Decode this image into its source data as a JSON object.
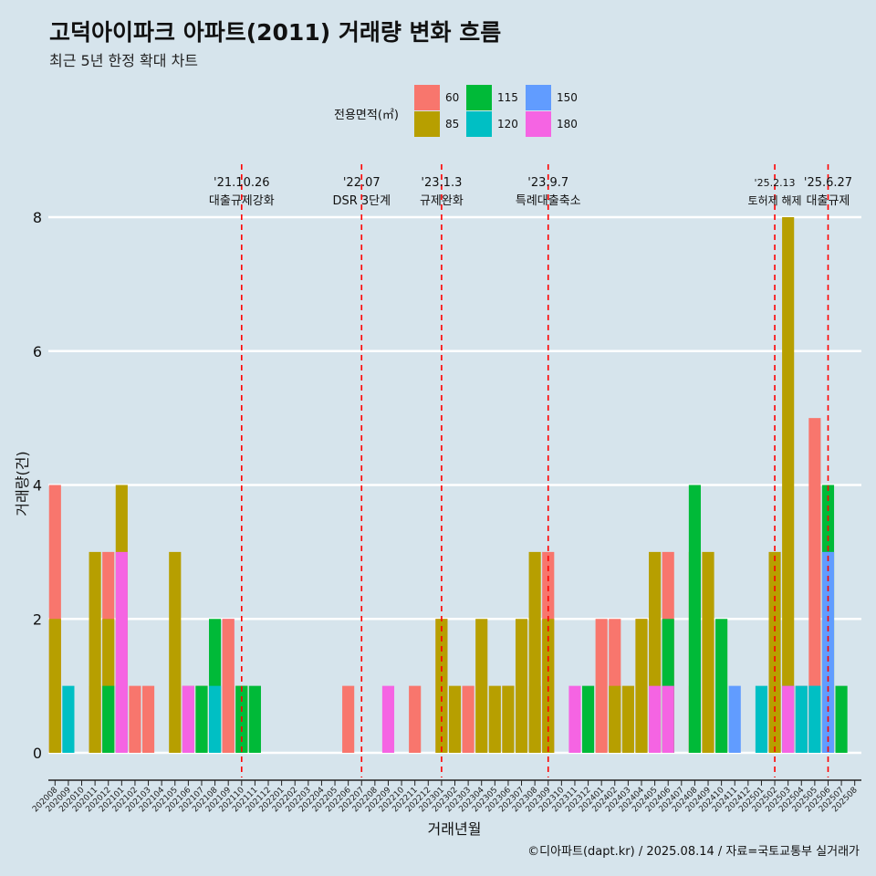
{
  "title": "고덕아이파크 아파트(2011) 거래량 변화 흐름",
  "subtitle": "최근 5년 한정 확대 차트",
  "caption": "©디아파트(dapt.kr) / 2025.08.14 / 자료=국토교통부 실거래가",
  "legend": {
    "title": "전용면적(㎡)",
    "items": [
      {
        "label": "60",
        "color": "#f8766d"
      },
      {
        "label": "85",
        "color": "#b79f00"
      },
      {
        "label": "115",
        "color": "#00ba38"
      },
      {
        "label": "120",
        "color": "#00bfc4"
      },
      {
        "label": "150",
        "color": "#619cff"
      },
      {
        "label": "180",
        "color": "#f564e3"
      }
    ]
  },
  "chart_data": {
    "type": "bar",
    "xlabel": "거래년월",
    "ylabel": "거래량(건)",
    "ylim": [
      0,
      8
    ],
    "yticks": [
      0,
      2,
      4,
      6,
      8
    ],
    "grid": true,
    "categories": [
      "202008",
      "202009",
      "202010",
      "202011",
      "202012",
      "202101",
      "202102",
      "202103",
      "202104",
      "202105",
      "202106",
      "202107",
      "202108",
      "202109",
      "202110",
      "202111",
      "202112",
      "202201",
      "202202",
      "202203",
      "202204",
      "202205",
      "202206",
      "202207",
      "202208",
      "202209",
      "202210",
      "202211",
      "202212",
      "202301",
      "202302",
      "202303",
      "202304",
      "202305",
      "202306",
      "202307",
      "202308",
      "202309",
      "202310",
      "202311",
      "202312",
      "202401",
      "202402",
      "202403",
      "202404",
      "202405",
      "202406",
      "202407",
      "202408",
      "202409",
      "202410",
      "202411",
      "202412",
      "202501",
      "202502",
      "202503",
      "202504",
      "202505",
      "202506",
      "202507",
      "202508"
    ],
    "bars": [
      {
        "month": "202008",
        "area": "60",
        "value": 4
      },
      {
        "month": "202008",
        "area": "85",
        "value": 2
      },
      {
        "month": "202009",
        "area": "120",
        "value": 1
      },
      {
        "month": "202011",
        "area": "60",
        "value": 1
      },
      {
        "month": "202011",
        "area": "85",
        "value": 3
      },
      {
        "month": "202012",
        "area": "60",
        "value": 3
      },
      {
        "month": "202012",
        "area": "85",
        "value": 2
      },
      {
        "month": "202012",
        "area": "115",
        "value": 1
      },
      {
        "month": "202101",
        "area": "120",
        "value": 1
      },
      {
        "month": "202101",
        "area": "85",
        "value": 4
      },
      {
        "month": "202101",
        "area": "150",
        "value": 1
      },
      {
        "month": "202101",
        "area": "180",
        "value": 3
      },
      {
        "month": "202102",
        "area": "60",
        "value": 1
      },
      {
        "month": "202103",
        "area": "60",
        "value": 1
      },
      {
        "month": "202105",
        "area": "85",
        "value": 3
      },
      {
        "month": "202106",
        "area": "60",
        "value": 1
      },
      {
        "month": "202106",
        "area": "180",
        "value": 1
      },
      {
        "month": "202107",
        "area": "85",
        "value": 1
      },
      {
        "month": "202107",
        "area": "115",
        "value": 1
      },
      {
        "month": "202108",
        "area": "115",
        "value": 2
      },
      {
        "month": "202108",
        "area": "120",
        "value": 1
      },
      {
        "month": "202109",
        "area": "85",
        "value": 1
      },
      {
        "month": "202109",
        "area": "180",
        "value": 2
      },
      {
        "month": "202109",
        "area": "60",
        "value": 2
      },
      {
        "month": "202110",
        "area": "85",
        "value": 1
      },
      {
        "month": "202110",
        "area": "115",
        "value": 1
      },
      {
        "month": "202111",
        "area": "115",
        "value": 1
      },
      {
        "month": "202206",
        "area": "60",
        "value": 1
      },
      {
        "month": "202209",
        "area": "180",
        "value": 1
      },
      {
        "month": "202211",
        "area": "60",
        "value": 1
      },
      {
        "month": "202301",
        "area": "60",
        "value": 2
      },
      {
        "month": "202301",
        "area": "85",
        "value": 2
      },
      {
        "month": "202302",
        "area": "85",
        "value": 1
      },
      {
        "month": "202303",
        "area": "60",
        "value": 1
      },
      {
        "month": "202304",
        "area": "85",
        "value": 2
      },
      {
        "month": "202305",
        "area": "85",
        "value": 1
      },
      {
        "month": "202306",
        "area": "60",
        "value": 1
      },
      {
        "month": "202306",
        "area": "85",
        "value": 1
      },
      {
        "month": "202307",
        "area": "85",
        "value": 2
      },
      {
        "month": "202308",
        "area": "60",
        "value": 1
      },
      {
        "month": "202308",
        "area": "85",
        "value": 3
      },
      {
        "month": "202309",
        "area": "60",
        "value": 3
      },
      {
        "month": "202309",
        "area": "85",
        "value": 2
      },
      {
        "month": "202311",
        "area": "180",
        "value": 1
      },
      {
        "month": "202312",
        "area": "115",
        "value": 1
      },
      {
        "month": "202401",
        "area": "60",
        "value": 2
      },
      {
        "month": "202402",
        "area": "60",
        "value": 2
      },
      {
        "month": "202402",
        "area": "85",
        "value": 1
      },
      {
        "month": "202403",
        "area": "85",
        "value": 1
      },
      {
        "month": "202404",
        "area": "60",
        "value": 2
      },
      {
        "month": "202404",
        "area": "85",
        "value": 2
      },
      {
        "month": "202405",
        "area": "85",
        "value": 3
      },
      {
        "month": "202405",
        "area": "180",
        "value": 1
      },
      {
        "month": "202406",
        "area": "60",
        "value": 3
      },
      {
        "month": "202406",
        "area": "85",
        "value": 1
      },
      {
        "month": "202406",
        "area": "115",
        "value": 2
      },
      {
        "month": "202406",
        "area": "180",
        "value": 1
      },
      {
        "month": "202408",
        "area": "60",
        "value": 1
      },
      {
        "month": "202408",
        "area": "85",
        "value": 3
      },
      {
        "month": "202408",
        "area": "115",
        "value": 4
      },
      {
        "month": "202409",
        "area": "85",
        "value": 3
      },
      {
        "month": "202410",
        "area": "115",
        "value": 2
      },
      {
        "month": "202411",
        "area": "150",
        "value": 1
      },
      {
        "month": "202501",
        "area": "120",
        "value": 1
      },
      {
        "month": "202502",
        "area": "60",
        "value": 1
      },
      {
        "month": "202502",
        "area": "85",
        "value": 3
      },
      {
        "month": "202503",
        "area": "60",
        "value": 1
      },
      {
        "month": "202503",
        "area": "85",
        "value": 8
      },
      {
        "month": "202503",
        "area": "120",
        "value": 1
      },
      {
        "month": "202503",
        "area": "180",
        "value": 1
      },
      {
        "month": "202504",
        "area": "60",
        "value": 1
      },
      {
        "month": "202504",
        "area": "120",
        "value": 1
      },
      {
        "month": "202505",
        "area": "60",
        "value": 5
      },
      {
        "month": "202505",
        "area": "150",
        "value": 1
      },
      {
        "month": "202505",
        "area": "120",
        "value": 1
      },
      {
        "month": "202506",
        "area": "85",
        "value": 3
      },
      {
        "month": "202506",
        "area": "115",
        "value": 4
      },
      {
        "month": "202506",
        "area": "150",
        "value": 3
      },
      {
        "month": "202507",
        "area": "115",
        "value": 1
      }
    ],
    "annotations": [
      {
        "month": "202110",
        "date": "'21.10.26",
        "label": "대출규제강화"
      },
      {
        "month": "202207",
        "date": "'22.07",
        "label": "DSR 3단계"
      },
      {
        "month": "202301",
        "date": "'23.1.3",
        "label": "규제완화"
      },
      {
        "month": "202309",
        "date": "'23.9.7",
        "label": "특례대출축소"
      },
      {
        "month": "202502",
        "date": "'25.2.13",
        "label": "토허제 해제"
      },
      {
        "month": "202506",
        "date": "'25.6.27",
        "label": "대출규제"
      }
    ]
  }
}
